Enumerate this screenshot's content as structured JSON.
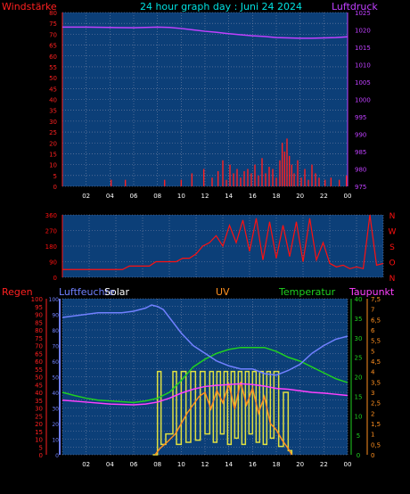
{
  "header": {
    "title": "24 hour graph day : Juni 24 2024",
    "left_label": "Windstärke",
    "right_label": "Luftdruck"
  },
  "colors": {
    "background": "#000000",
    "plot_bg": "#0c3f78",
    "grid": "#7a86a8",
    "wind": "#ff2020",
    "pressure": "#c040ff",
    "title": "#00e0e0",
    "humidity": "#7080ff",
    "solar": "#e0e040",
    "uv": "#ff9020",
    "temperature": "#20d020",
    "dewpoint": "#ff40ff",
    "winddir": "#ff1010"
  },
  "chart_data": [
    {
      "type": "line",
      "panel": "top",
      "x_ticks": [
        "02",
        "04",
        "06",
        "08",
        "10",
        "12",
        "14",
        "16",
        "18",
        "20",
        "22",
        "00"
      ],
      "left_axis": {
        "ticks": [
          "0",
          "5",
          "10",
          "15",
          "20",
          "25",
          "30",
          "35",
          "40",
          "45",
          "50",
          "55",
          "60",
          "65",
          "70",
          "75",
          "80"
        ],
        "ylim": [
          0,
          80
        ]
      },
      "right_axis": {
        "ticks": [
          "975",
          "980",
          "985",
          "990",
          "995",
          "1000",
          "1005",
          "1010",
          "1015",
          "1020",
          "1025"
        ],
        "ylim": [
          975,
          1025
        ]
      },
      "series": [
        {
          "name": "Luftdruck",
          "axis": "right",
          "x": [
            0,
            2,
            4,
            6,
            8,
            9,
            10,
            11,
            12,
            13,
            14,
            15,
            16,
            17,
            18,
            19,
            20,
            21,
            22,
            23,
            24
          ],
          "y": [
            1020.8,
            1020.8,
            1020.7,
            1020.6,
            1020.8,
            1020.7,
            1020.4,
            1020.0,
            1019.6,
            1019.3,
            1018.9,
            1018.6,
            1018.3,
            1018.1,
            1017.8,
            1017.7,
            1017.6,
            1017.6,
            1017.7,
            1017.8,
            1018.0
          ]
        },
        {
          "name": "Windstärke",
          "axis": "left",
          "style": "bars",
          "x": [
            4.1,
            5.3,
            8.6,
            10.0,
            10.9,
            11.9,
            12.6,
            13.1,
            13.5,
            13.8,
            14.1,
            14.4,
            14.7,
            15.0,
            15.3,
            15.6,
            15.9,
            16.2,
            16.5,
            16.8,
            17.1,
            17.4,
            17.7,
            18.0,
            18.3,
            18.5,
            18.7,
            18.9,
            19.1,
            19.3,
            19.5,
            19.8,
            20.1,
            20.4,
            20.7,
            21.0,
            21.3,
            21.6,
            22.1,
            22.6,
            23.3,
            23.9
          ],
          "y": [
            3,
            3,
            3,
            3,
            6,
            8,
            4,
            7,
            12,
            3,
            10,
            6,
            8,
            4,
            7,
            8,
            6,
            10,
            5,
            13,
            6,
            9,
            8,
            4,
            12,
            20,
            16,
            22,
            14,
            10,
            6,
            12,
            4,
            8,
            3,
            10,
            6,
            4,
            3,
            4,
            3,
            5
          ]
        }
      ]
    },
    {
      "type": "line",
      "panel": "middle",
      "left_axis": {
        "ticks": [
          "0",
          "90",
          "180",
          "270",
          "360"
        ],
        "ylim": [
          0,
          360
        ]
      },
      "right_axis": {
        "ticks": [
          "N",
          "W",
          "S",
          "O",
          "N"
        ]
      },
      "series": [
        {
          "name": "wind direction",
          "axis": "left",
          "x": [
            0,
            1,
            2,
            3,
            4,
            4.5,
            5,
            5.5,
            6,
            6.5,
            7,
            7.5,
            8,
            8.5,
            9,
            9.5,
            10,
            10.5,
            11,
            11.5,
            12,
            12.5,
            13,
            13.5,
            14,
            14.5,
            15,
            15.5,
            16,
            16.5,
            17,
            17.5,
            18,
            18.5,
            19,
            19.5,
            20,
            20.5,
            21,
            21.5,
            22,
            22.5,
            23,
            23.5,
            24
          ],
          "y": [
            45,
            45,
            45,
            45,
            45,
            45,
            65,
            65,
            65,
            65,
            90,
            90,
            90,
            90,
            110,
            110,
            135,
            180,
            200,
            240,
            180,
            300,
            200,
            330,
            150,
            340,
            100,
            320,
            110,
            300,
            120,
            320,
            90,
            340,
            100,
            200,
            80,
            60,
            70,
            50,
            60,
            50,
            360,
            70,
            80
          ]
        }
      ]
    },
    {
      "type": "line",
      "panel": "bottom",
      "x_ticks": [
        "02",
        "04",
        "06",
        "08",
        "10",
        "12",
        "14",
        "16",
        "18",
        "20",
        "22",
        "00"
      ],
      "axes_labels": [
        "Regen",
        "Luftfeuchte",
        "Solar",
        "UV",
        "Temperatur",
        "Taupunkt"
      ],
      "axis_regen": {
        "ticks": [
          "0",
          "5",
          "10",
          "15",
          "20",
          "25",
          "30",
          "35",
          "40",
          "45",
          "50",
          "55",
          "60",
          "65",
          "70",
          "75",
          "80",
          "85",
          "90",
          "95",
          "100"
        ]
      },
      "axis_humidity": {
        "ticks": [
          "0",
          "10",
          "20",
          "30",
          "40",
          "50",
          "60",
          "70",
          "80",
          "90",
          "100"
        ],
        "ylim": [
          0,
          100
        ]
      },
      "axis_temperature": {
        "ticks": [
          "0",
          "5",
          "10",
          "15",
          "20",
          "25",
          "30",
          "35",
          "40"
        ],
        "ylim": [
          0,
          40
        ]
      },
      "axis_uv": {
        "ticks": [
          "0",
          "0,5",
          "1",
          "1,5",
          "2",
          "2,5",
          "3",
          "3,5",
          "4",
          "4,5",
          "5",
          "5,5",
          "6",
          "6,5",
          "7",
          "7,5"
        ],
        "ylim": [
          0,
          7.5
        ]
      },
      "series": [
        {
          "name": "Luftfeuchte",
          "axis": "humidity",
          "x": [
            0,
            1,
            2,
            3,
            4,
            5,
            6,
            7,
            7.5,
            8,
            8.5,
            9,
            10,
            11,
            12,
            13,
            14,
            15,
            16,
            17,
            18,
            19,
            20,
            21,
            22,
            23,
            24
          ],
          "y": [
            88,
            89,
            90,
            91,
            91,
            91,
            92,
            94,
            96,
            95,
            93,
            88,
            78,
            70,
            65,
            60,
            57,
            55,
            55,
            52,
            51,
            54,
            58,
            65,
            70,
            74,
            76
          ]
        },
        {
          "name": "Temperatur",
          "axis": "temperature",
          "x": [
            0,
            1,
            2,
            3,
            4,
            5,
            6,
            7,
            8,
            9,
            10,
            11,
            12,
            13,
            14,
            15,
            16,
            17,
            18,
            19,
            20,
            21,
            22,
            23,
            24
          ],
          "y": [
            16,
            15.2,
            14.5,
            14,
            13.8,
            13.6,
            13.4,
            13.8,
            14.5,
            16,
            19,
            22.5,
            24.5,
            26,
            27,
            27.5,
            27.5,
            27.5,
            26.5,
            25,
            24,
            22.5,
            21,
            19.5,
            18.5
          ]
        },
        {
          "name": "Taupunkt",
          "axis": "temperature",
          "x": [
            0,
            2,
            4,
            6,
            7,
            8,
            9,
            10,
            11,
            12,
            13,
            14,
            15,
            16,
            17,
            18,
            19,
            20,
            21,
            22,
            23,
            24
          ],
          "y": [
            14,
            13.5,
            13,
            12.8,
            13,
            13.5,
            14.5,
            15.8,
            16.8,
            17.5,
            17.8,
            18,
            18.2,
            18,
            17.6,
            17,
            16.8,
            16.4,
            16,
            15.8,
            15.5,
            15.2
          ]
        },
        {
          "name": "UV",
          "axis": "uv",
          "x": [
            7.8,
            8.2,
            8.8,
            9.5,
            10,
            10.5,
            11,
            11.5,
            12,
            12.5,
            13,
            13.5,
            14,
            14.5,
            15,
            15.5,
            16,
            16.5,
            17,
            17.5,
            18,
            18.5,
            19,
            19.3
          ],
          "y": [
            0,
            0.3,
            0.6,
            1.0,
            1.5,
            2.0,
            2.4,
            2.8,
            3.0,
            2.2,
            3.1,
            2.5,
            3.4,
            2.2,
            3.5,
            2.4,
            3.2,
            2.0,
            2.8,
            1.5,
            1.2,
            0.7,
            0.3,
            0
          ]
        },
        {
          "name": "Solar",
          "axis": "uv",
          "style": "step",
          "x": [
            7.6,
            8.0,
            8.3,
            8.7,
            9.3,
            9.6,
            10.0,
            10.4,
            10.8,
            11.2,
            11.6,
            12.0,
            12.4,
            12.7,
            13.0,
            13.3,
            13.6,
            13.9,
            14.2,
            14.5,
            14.8,
            15.1,
            15.4,
            15.7,
            16.0,
            16.3,
            16.6,
            16.9,
            17.2,
            17.5,
            17.8,
            18.2,
            18.6,
            19.0,
            19.3
          ],
          "y": [
            0,
            4.0,
            0.5,
            1.0,
            4.0,
            0.5,
            4.0,
            0.6,
            4.0,
            0.7,
            4.0,
            1.0,
            4.0,
            0.6,
            4.0,
            1.0,
            4.0,
            0.5,
            4.0,
            0.8,
            4.0,
            0.5,
            4.0,
            1.0,
            4.0,
            0.6,
            4.0,
            0.5,
            4.0,
            0.8,
            4.0,
            0.4,
            3.0,
            0.2,
            0
          ]
        }
      ]
    }
  ]
}
